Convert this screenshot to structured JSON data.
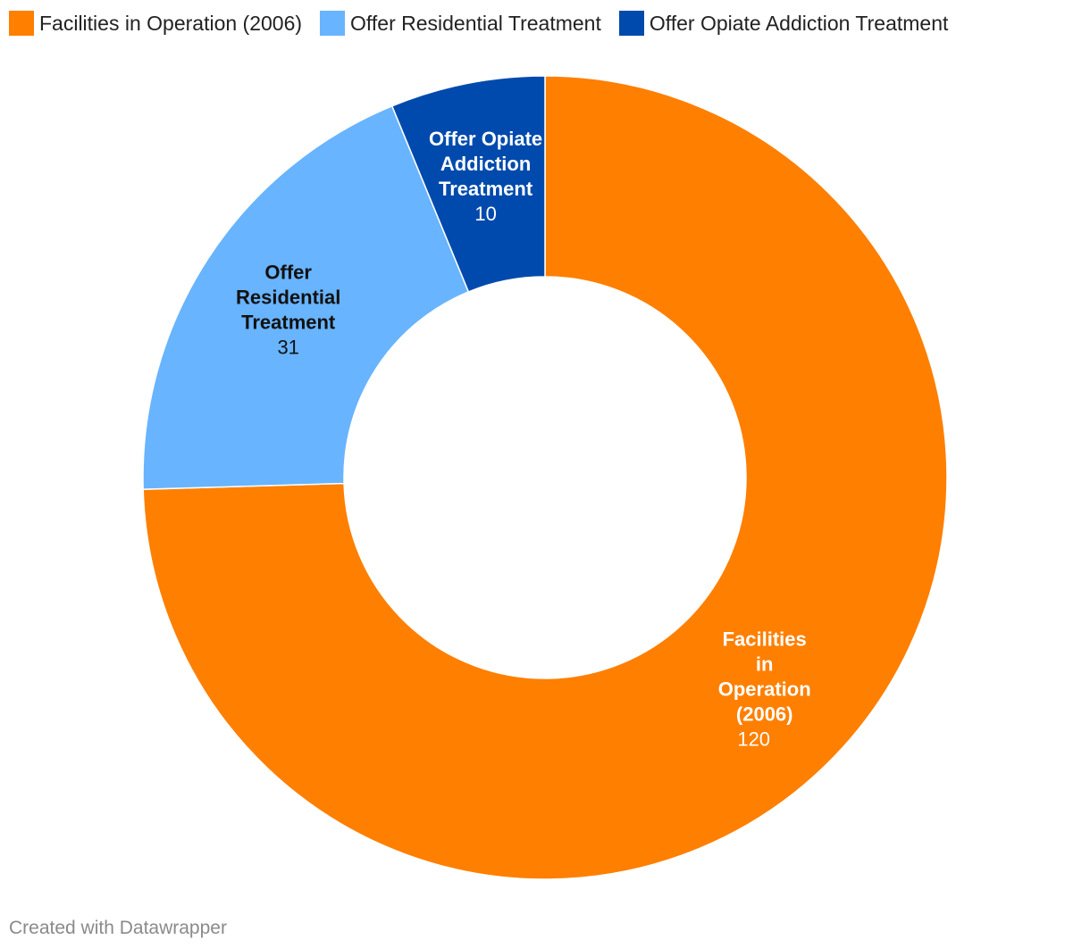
{
  "chart_data": {
    "type": "pie",
    "style": "donut",
    "categories": [
      "Facilities in Operation (2006)",
      "Offer Residential Treatment",
      "Offer Opiate Addiction Treatment"
    ],
    "values": [
      120,
      31,
      10
    ],
    "colors": [
      "#ff7f00",
      "#68b4ff",
      "#004aad"
    ],
    "label_colors": [
      "#ffffff",
      "#111111",
      "#ffffff"
    ],
    "slice_labels": [
      [
        "Facilities",
        "in",
        "Operation",
        "(2006)"
      ],
      [
        "Offer",
        "Residential",
        "Treatment"
      ],
      [
        "Offer Opiate",
        "Addiction",
        "Treatment"
      ]
    ],
    "value_labels": [
      "120",
      "31",
      "10"
    ],
    "legend_position": "top-left"
  },
  "legend": {
    "items": [
      {
        "label": "Facilities in Operation (2006)",
        "color": "#ff7f00"
      },
      {
        "label": "Offer Residential Treatment",
        "color": "#68b4ff"
      },
      {
        "label": "Offer Opiate Addiction Treatment",
        "color": "#004aad"
      }
    ]
  },
  "footer": {
    "credit": "Created with Datawrapper"
  }
}
